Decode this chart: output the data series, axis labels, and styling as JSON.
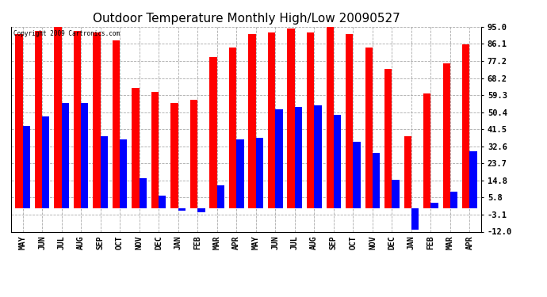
{
  "title": "Outdoor Temperature Monthly High/Low 20090527",
  "copyright": "Copyright 2009 Cartronics.com",
  "labels": [
    "MAY",
    "JUN",
    "JUL",
    "AUG",
    "SEP",
    "OCT",
    "NOV",
    "DEC",
    "JAN",
    "FEB",
    "MAR",
    "APR",
    "MAY",
    "JUN",
    "JUL",
    "AUG",
    "SEP",
    "OCT",
    "NOV",
    "DEC",
    "JAN",
    "FEB",
    "MAR",
    "APR"
  ],
  "highs": [
    91,
    93,
    95,
    93,
    92,
    88,
    63,
    61,
    55,
    57,
    79,
    84,
    91,
    92,
    94,
    92,
    95,
    91,
    84,
    73,
    38,
    60,
    76,
    86
  ],
  "lows": [
    43,
    48,
    55,
    55,
    38,
    36,
    16,
    7,
    -1,
    -2,
    12,
    36,
    37,
    52,
    53,
    54,
    49,
    35,
    29,
    15,
    -11,
    3,
    9,
    30
  ],
  "ymin": -12.0,
  "ymax": 95.0,
  "yticks": [
    95.0,
    86.1,
    77.2,
    68.2,
    59.3,
    50.4,
    41.5,
    32.6,
    23.7,
    14.8,
    5.8,
    -3.1,
    -12.0
  ],
  "bar_width": 0.38,
  "high_color": "#FF0000",
  "low_color": "#0000FF",
  "background_color": "#FFFFFF",
  "grid_color": "#AAAAAA",
  "title_fontsize": 11,
  "label_fontsize": 7,
  "ytick_fontsize": 7.5
}
